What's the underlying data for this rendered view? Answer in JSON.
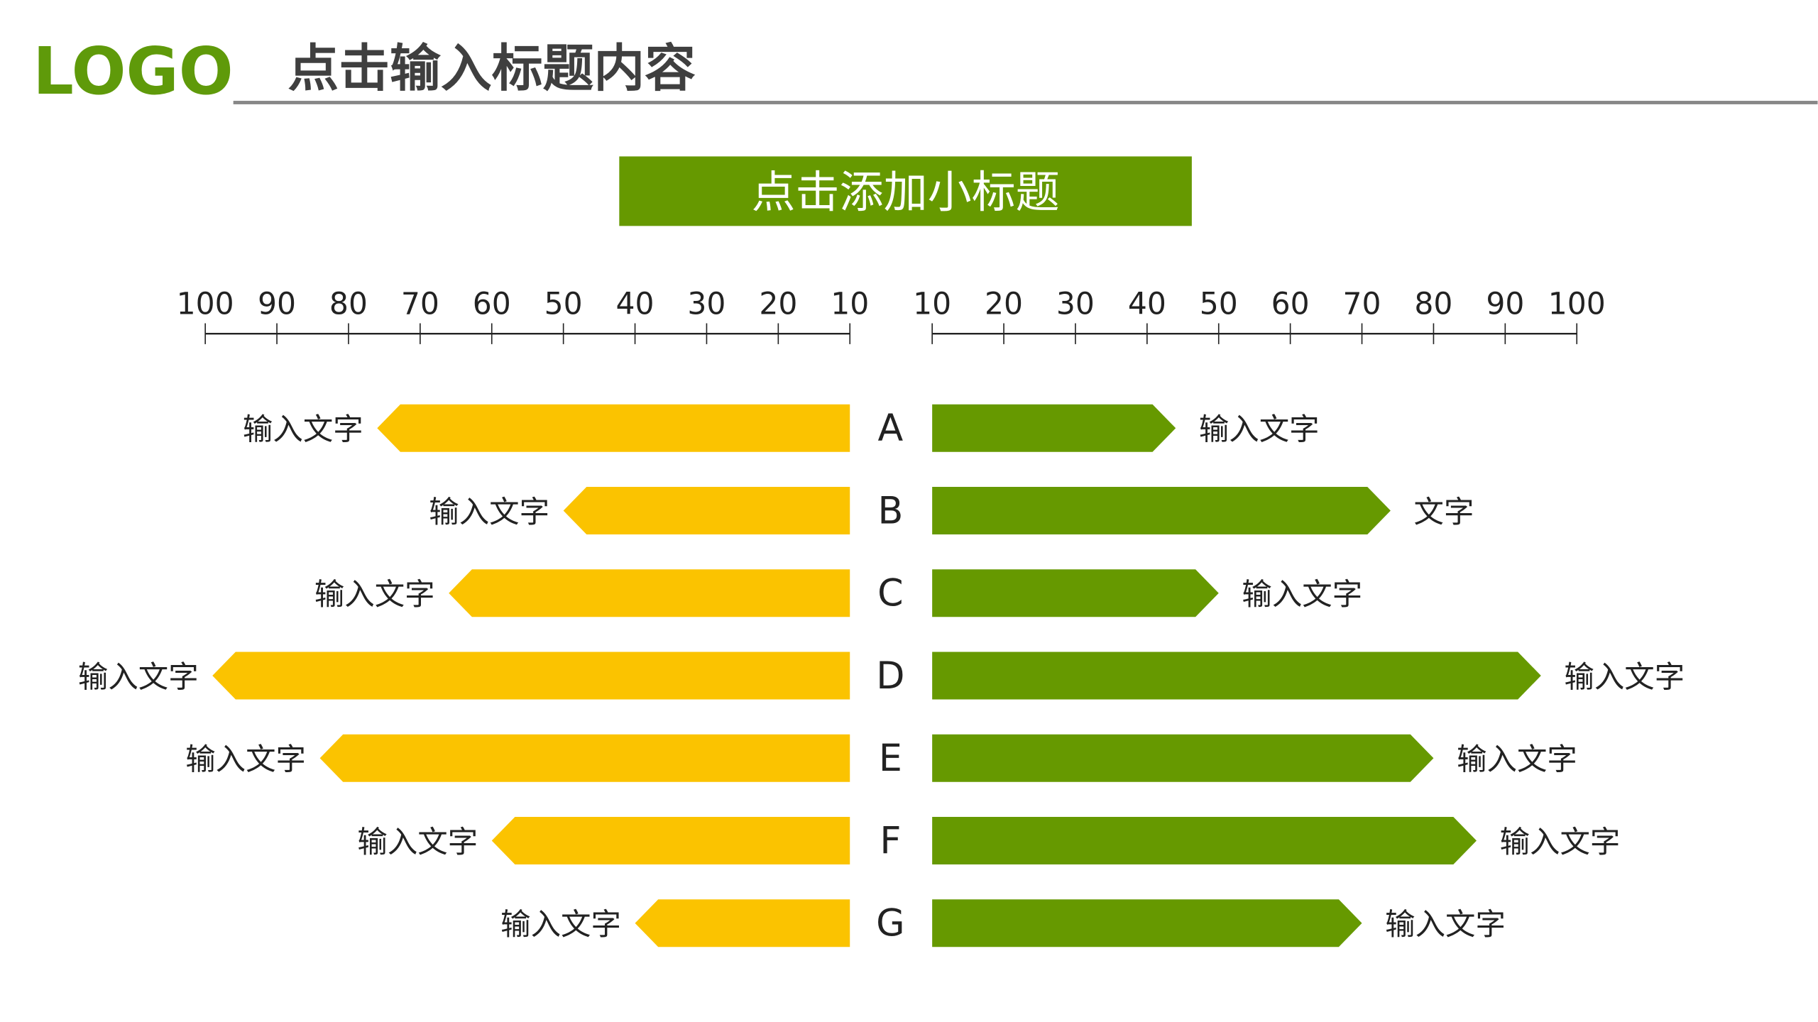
{
  "header": {
    "logo": "LOGO",
    "title": "点击输入标题内容"
  },
  "subtitle": "点击添加小标题",
  "colors": {
    "left": "#FBC300",
    "right": "#669900",
    "logo": "#5F9A0A",
    "title": "#3F3F3F",
    "rule": "#888888"
  },
  "chart_data": {
    "type": "bar",
    "orientation": "horizontal-butterfly",
    "categories": [
      "A",
      "B",
      "C",
      "D",
      "E",
      "F",
      "G"
    ],
    "axis_ticks": [
      10,
      20,
      30,
      40,
      50,
      60,
      70,
      80,
      90,
      100
    ],
    "xlim": [
      10,
      100
    ],
    "series": [
      {
        "name": "left",
        "side": "left",
        "values": [
          76,
          50,
          66,
          99,
          84,
          60,
          40
        ],
        "labels": [
          "输入文字",
          "输入文字",
          "输入文字",
          "输入文字",
          "输入文字",
          "输入文字",
          "输入文字"
        ]
      },
      {
        "name": "right",
        "side": "right",
        "values": [
          44,
          74,
          50,
          95,
          80,
          86,
          70
        ],
        "labels": [
          "输入文字",
          "文字",
          "输入文字",
          "输入文字",
          "输入文字",
          "输入文字",
          "输入文字"
        ]
      }
    ]
  }
}
